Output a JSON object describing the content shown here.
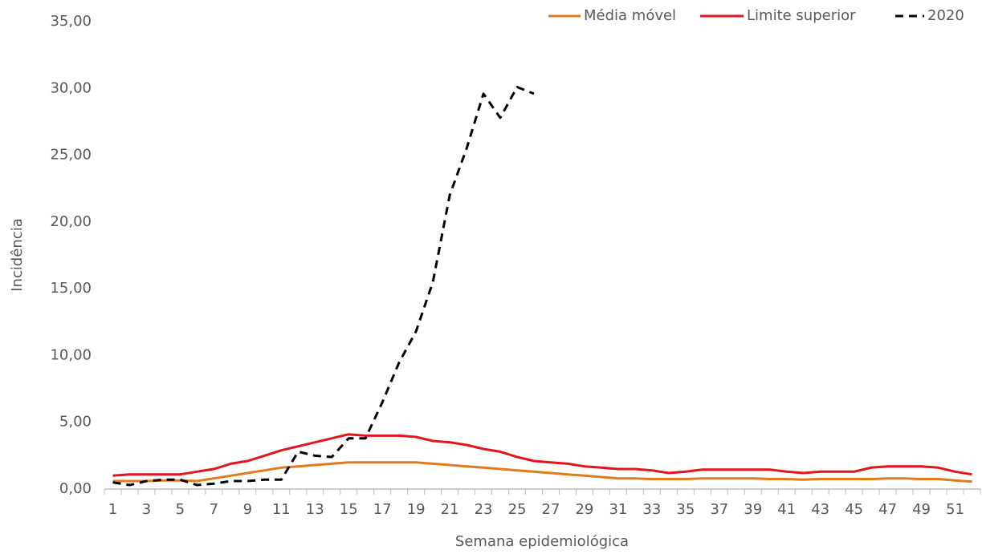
{
  "chart_data": {
    "type": "line",
    "y_label": "Incidência",
    "x_label": "Semana epidemiológica",
    "categories": [
      1,
      null,
      3,
      null,
      5,
      null,
      7,
      null,
      9,
      null,
      11,
      null,
      13,
      null,
      15,
      null,
      17,
      null,
      19,
      null,
      21,
      null,
      23,
      null,
      25,
      null,
      27,
      null,
      29,
      null,
      31,
      null,
      33,
      null,
      35,
      null,
      37,
      null,
      39,
      null,
      41,
      null,
      43,
      null,
      45,
      null,
      47,
      null,
      49,
      null,
      51,
      null
    ],
    "series": [
      {
        "name": "Média móvel",
        "color": "#e07b1f",
        "dash": false,
        "values": [
          0.6,
          0.6,
          0.6,
          0.65,
          0.65,
          0.6,
          0.8,
          1.0,
          1.2,
          1.4,
          1.6,
          1.7,
          1.8,
          1.9,
          2.0,
          2.0,
          2.0,
          2.0,
          2.0,
          1.9,
          1.8,
          1.7,
          1.6,
          1.5,
          1.4,
          1.3,
          1.2,
          1.1,
          1.0,
          0.9,
          0.8,
          0.8,
          0.75,
          0.75,
          0.75,
          0.8,
          0.8,
          0.8,
          0.8,
          0.75,
          0.75,
          0.7,
          0.75,
          0.75,
          0.75,
          0.75,
          0.8,
          0.8,
          0.75,
          0.75,
          0.65,
          0.55
        ]
      },
      {
        "name": "Limite superior",
        "color": "#e3141b",
        "dash": false,
        "values": [
          1.0,
          1.1,
          1.1,
          1.1,
          1.1,
          1.3,
          1.5,
          1.9,
          2.1,
          2.5,
          2.9,
          3.2,
          3.5,
          3.8,
          4.1,
          4.0,
          4.0,
          4.0,
          3.9,
          3.6,
          3.5,
          3.3,
          3.0,
          2.8,
          2.4,
          2.1,
          2.0,
          1.9,
          1.7,
          1.6,
          1.5,
          1.5,
          1.4,
          1.2,
          1.3,
          1.45,
          1.45,
          1.45,
          1.45,
          1.45,
          1.3,
          1.2,
          1.3,
          1.3,
          1.3,
          1.6,
          1.7,
          1.7,
          1.7,
          1.6,
          1.3,
          1.1
        ]
      },
      {
        "name": "2020",
        "color": "#000000",
        "dash": true,
        "values": [
          0.5,
          0.3,
          0.6,
          0.7,
          0.7,
          0.3,
          0.4,
          0.6,
          0.6,
          0.7,
          0.7,
          2.8,
          2.5,
          2.4,
          3.8,
          3.8,
          6.5,
          9.5,
          11.8,
          15.5,
          22.0,
          25.5,
          29.6,
          27.8,
          30.1,
          29.6,
          null,
          null,
          null,
          null,
          null,
          null,
          null,
          null,
          null,
          null,
          null,
          null,
          null,
          null,
          null,
          null,
          null,
          null,
          null,
          null,
          null,
          null,
          null,
          null,
          null,
          null
        ]
      }
    ],
    "ylim": [
      0,
      35
    ],
    "yticks": [
      {
        "value": 0,
        "label": "0,00"
      },
      {
        "value": 5,
        "label": "5,00"
      },
      {
        "value": 10,
        "label": "10,00"
      },
      {
        "value": 15,
        "label": "15,00"
      },
      {
        "value": 20,
        "label": "20,00"
      },
      {
        "value": 25,
        "label": "25,00"
      },
      {
        "value": 30,
        "label": "30,00"
      },
      {
        "value": 35,
        "label": "35,00"
      }
    ],
    "grid": false,
    "legend": "top-right"
  }
}
